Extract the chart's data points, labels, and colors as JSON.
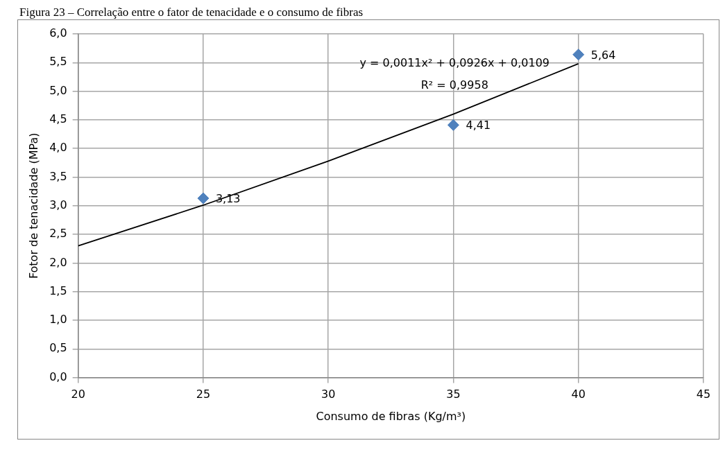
{
  "chart_data": {
    "type": "scatter",
    "title": "Figura 23 – Correlação entre o fator de tenacidade e o consumo de fibras",
    "xlabel": "Consumo de fibras (Kg/m³)",
    "ylabel": "Fotor de tenacidade (MPa)",
    "series": [
      {
        "type": "scatter",
        "color": "#4f81bd",
        "x": [
          25,
          35,
          40
        ],
        "values": [
          3.13,
          4.41,
          5.64
        ],
        "value_labels": [
          "3,13",
          "4,41",
          "5,64"
        ],
        "marker": "diamond"
      },
      {
        "type": "line",
        "color": "#000000",
        "x": [
          20,
          25,
          30,
          35,
          40
        ],
        "values": [
          2.3,
          3.01,
          3.78,
          4.6,
          5.48
        ],
        "marker": "none",
        "line_style": "solid"
      }
    ],
    "annotations": [
      "y = 0,0011x² + 0,0926x + 0,0109",
      "R² = 0,9958"
    ],
    "xlim": [
      20,
      45
    ],
    "xticks": [
      20,
      25,
      30,
      35,
      40,
      45
    ],
    "ylim": [
      0,
      6
    ],
    "yticks": [
      {
        "value": 0,
        "label": "0,0"
      },
      {
        "value": 0.5,
        "label": "0,5"
      },
      {
        "value": 1,
        "label": "1,0"
      },
      {
        "value": 1.5,
        "label": "1,5"
      },
      {
        "value": 2,
        "label": "2,0"
      },
      {
        "value": 2.5,
        "label": "2,5"
      },
      {
        "value": 3,
        "label": "3,0"
      },
      {
        "value": 3.5,
        "label": "3,5"
      },
      {
        "value": 4,
        "label": "4,0"
      },
      {
        "value": 4.5,
        "label": "4,5"
      },
      {
        "value": 5,
        "label": "5,0"
      },
      {
        "value": 5.5,
        "label": "5,5"
      },
      {
        "value": 6,
        "label": "6,0"
      }
    ],
    "grid": true,
    "legend": false
  }
}
